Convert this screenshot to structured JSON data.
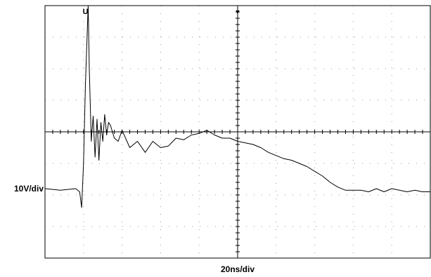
{
  "chart_data": {
    "type": "line",
    "title": "",
    "xlabel": "20ns/div",
    "ylabel": "10V/div",
    "xlim": [
      0,
      10
    ],
    "ylim": [
      -4,
      4
    ],
    "grid": true,
    "colors": {
      "trace": "#000000",
      "grid": "#9a9a9a",
      "frame": "#000000"
    },
    "markers": [
      {
        "name": "trigger-marker-top",
        "x": 5.0,
        "symbol": "▼"
      },
      {
        "name": "trace-marker-U",
        "x": 1.05,
        "symbol": "U"
      }
    ],
    "series": [
      {
        "x": [
          0,
          0.4,
          0.8,
          0.9,
          0.95,
          1.0,
          1.05,
          1.1,
          1.12,
          1.15,
          1.2,
          1.25,
          1.3,
          1.35,
          1.4,
          1.45,
          1.5,
          1.55,
          1.6,
          1.65,
          1.7,
          1.8,
          1.9,
          2.0,
          2.2,
          2.4,
          2.6,
          2.8,
          3.0,
          3.2,
          3.4,
          3.6,
          3.8,
          4.0,
          4.2,
          4.4,
          4.6,
          4.8,
          5.0,
          5.2,
          5.4,
          5.6,
          5.8,
          6.0,
          6.2,
          6.4,
          6.6,
          6.8,
          7.0,
          7.2,
          7.4,
          7.6,
          7.8,
          8.0,
          8.2,
          8.4,
          8.6,
          8.8,
          9.0,
          9.2,
          9.4,
          9.6,
          9.8,
          10.0
        ],
        "y": [
          -1.8,
          -1.85,
          -1.8,
          -1.9,
          -2.4,
          -1.0,
          1.5,
          3.3,
          4.0,
          2.0,
          -0.3,
          0.5,
          -0.8,
          0.4,
          -0.9,
          0.3,
          -0.3,
          0.55,
          -0.1,
          0.3,
          0.2,
          -0.2,
          -0.3,
          0.05,
          -0.5,
          -0.3,
          -0.65,
          -0.3,
          -0.5,
          -0.45,
          -0.2,
          -0.25,
          -0.1,
          -0.05,
          0.05,
          -0.1,
          -0.2,
          -0.2,
          -0.3,
          -0.35,
          -0.4,
          -0.5,
          -0.65,
          -0.75,
          -0.85,
          -0.9,
          -1.0,
          -1.1,
          -1.25,
          -1.4,
          -1.6,
          -1.75,
          -1.85,
          -1.85,
          -1.85,
          -1.9,
          -1.8,
          -1.9,
          -1.8,
          -1.85,
          -1.9,
          -1.85,
          -1.9,
          -1.9
        ]
      }
    ]
  }
}
